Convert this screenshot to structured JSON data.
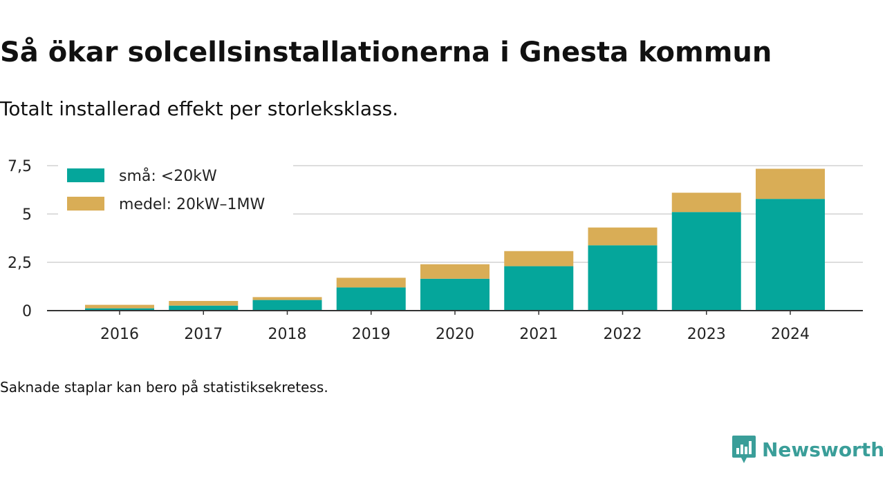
{
  "title": "Så ökar solcellsinstallationerna i Gnesta kommun",
  "subtitle": "Totalt installerad effekt per storleksklass.",
  "footnote": "Saknade staplar kan bero på statistiksekretess.",
  "brand": {
    "name": "Newsworthy",
    "icon": "newsworthy-logo-icon"
  },
  "colors": {
    "small": "#05a69b",
    "medium": "#d9ad56",
    "grid": "#dddddd",
    "axis": "#333333"
  },
  "chart_data": {
    "type": "bar",
    "stacked": true,
    "categories": [
      "2016",
      "2017",
      "2018",
      "2019",
      "2020",
      "2021",
      "2022",
      "2023",
      "2024"
    ],
    "series": [
      {
        "name": "små: <20kW",
        "values": [
          0.12,
          0.26,
          0.55,
          1.2,
          1.65,
          2.3,
          3.38,
          5.1,
          5.78
        ]
      },
      {
        "name": "medel: 20kW–1MW",
        "values": [
          0.18,
          0.24,
          0.15,
          0.5,
          0.75,
          0.78,
          0.92,
          1.0,
          1.56
        ]
      }
    ],
    "ylim": [
      0,
      7.5
    ],
    "yticks": [
      0,
      2.5,
      5,
      7.5
    ],
    "ytick_labels": [
      "0",
      "2,5",
      "5",
      "7,5"
    ],
    "grid": true,
    "legend_position": "top-left"
  }
}
